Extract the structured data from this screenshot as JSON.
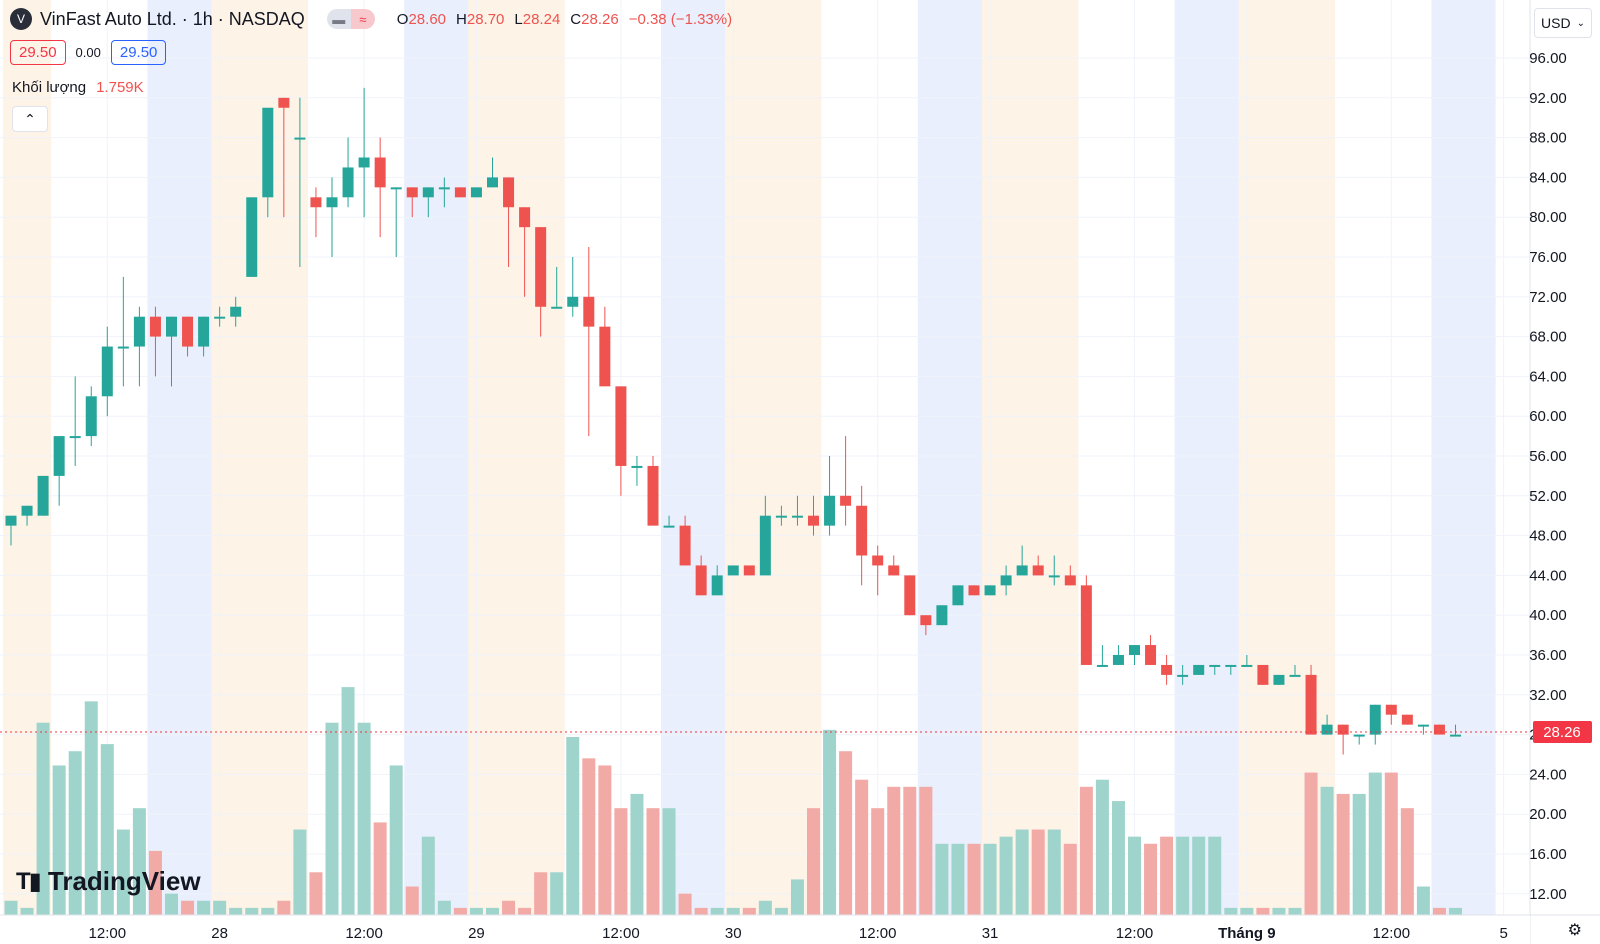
{
  "header": {
    "symbol_icon": "V",
    "title": "VinFast Auto Ltd. · 1h · NASDAQ",
    "toggle_left_icon": "dash-icon",
    "toggle_right_icon": "approx-icon",
    "ohlc": {
      "o_label": "O",
      "o": "28.60",
      "h_label": "H",
      "h": "28.70",
      "l_label": "L",
      "l": "28.24",
      "c_label": "C",
      "c": "28.26",
      "change": "−0.38 (−1.33%)"
    },
    "sell_price": "29.50",
    "spread": "0.00",
    "buy_price": "29.50",
    "volume_label": "Khối lượng",
    "volume_value": "1.759K",
    "collapse_icon": "chevron-up-icon",
    "currency": "USD",
    "logo_text": "TradingView"
  },
  "colors": {
    "up": "#26a69a",
    "down": "#ef5350",
    "up_volume": "#9fd4cd",
    "down_volume": "#f2aaa7",
    "session_pre": "#fdf3e6",
    "session_post": "#e9effc",
    "price_tag": "#f23645"
  },
  "chart_data": {
    "type": "candlestick",
    "timeframe": "1h",
    "ylim": [
      10,
      98
    ],
    "y_ticks": [
      "96.00",
      "92.00",
      "88.00",
      "84.00",
      "80.00",
      "76.00",
      "72.00",
      "68.00",
      "64.00",
      "60.00",
      "56.00",
      "52.00",
      "48.00",
      "44.00",
      "40.00",
      "36.00",
      "32.00",
      "28.00",
      "24.00",
      "20.00",
      "16.00",
      "12.00"
    ],
    "x_ticks": [
      {
        "bar": 6,
        "label": "12:00"
      },
      {
        "bar": 13,
        "label": "28"
      },
      {
        "bar": 22,
        "label": "12:00"
      },
      {
        "bar": 29,
        "label": "29"
      },
      {
        "bar": 38,
        "label": "12:00"
      },
      {
        "bar": 45,
        "label": "30"
      },
      {
        "bar": 54,
        "label": "12:00"
      },
      {
        "bar": 61,
        "label": "31"
      },
      {
        "bar": 70,
        "label": "12:00"
      },
      {
        "bar": 77,
        "label": "Tháng 9"
      },
      {
        "bar": 86,
        "label": "12:00"
      },
      {
        "bar": 93,
        "label": "5"
      }
    ],
    "last_price": "28.26",
    "last_price_value": 28.26,
    "sessions": [
      {
        "start": 0,
        "end": 2,
        "type": "pre"
      },
      {
        "start": 9,
        "end": 12,
        "type": "post"
      },
      {
        "start": 13,
        "end": 18,
        "type": "pre"
      },
      {
        "start": 25,
        "end": 28,
        "type": "post"
      },
      {
        "start": 29,
        "end": 34,
        "type": "pre"
      },
      {
        "start": 41,
        "end": 44,
        "type": "post"
      },
      {
        "start": 45,
        "end": 50,
        "type": "pre"
      },
      {
        "start": 57,
        "end": 60,
        "type": "post"
      },
      {
        "start": 61,
        "end": 66,
        "type": "pre"
      },
      {
        "start": 73,
        "end": 76,
        "type": "post"
      },
      {
        "start": 77,
        "end": 82,
        "type": "pre"
      },
      {
        "start": 89,
        "end": 92,
        "type": "post"
      }
    ],
    "bars": [
      [
        49,
        50,
        47,
        50,
        2
      ],
      [
        50,
        51,
        49,
        51,
        1
      ],
      [
        50,
        54,
        50,
        54,
        27
      ],
      [
        54,
        58,
        51,
        58,
        21
      ],
      [
        58,
        64,
        55,
        58,
        23
      ],
      [
        58,
        63,
        57,
        62,
        30
      ],
      [
        62,
        69,
        60,
        67,
        24
      ],
      [
        67,
        74,
        63,
        67,
        12
      ],
      [
        67,
        71,
        63,
        70,
        15
      ],
      [
        70,
        71,
        64,
        68,
        9
      ],
      [
        68,
        70,
        63,
        70,
        3
      ],
      [
        70,
        70,
        66,
        67,
        2
      ],
      [
        67,
        70,
        66,
        70,
        2
      ],
      [
        70,
        71,
        69,
        70,
        2
      ],
      [
        70,
        72,
        69,
        71,
        1
      ],
      [
        74,
        82,
        74,
        82,
        1
      ],
      [
        82,
        90,
        80,
        91,
        1
      ],
      [
        92,
        92,
        80,
        91,
        2
      ],
      [
        88,
        92,
        75,
        88,
        12
      ],
      [
        82,
        83,
        78,
        81,
        6
      ],
      [
        81,
        84,
        76,
        82,
        27
      ],
      [
        82,
        88,
        81,
        85,
        32
      ],
      [
        85,
        93,
        80,
        86,
        27
      ],
      [
        86,
        88,
        78,
        83,
        13
      ],
      [
        83,
        83,
        76,
        83,
        21
      ],
      [
        83,
        83,
        80,
        82,
        4
      ],
      [
        82,
        83,
        80,
        83,
        11
      ],
      [
        83,
        84,
        81,
        83,
        2
      ],
      [
        83,
        83,
        82,
        82,
        1
      ],
      [
        82,
        83,
        82,
        83,
        1
      ],
      [
        83,
        86,
        83,
        84,
        1
      ],
      [
        84,
        84,
        75,
        81,
        2
      ],
      [
        81,
        81,
        72,
        79,
        1
      ],
      [
        79,
        79,
        68,
        71,
        6
      ],
      [
        71,
        75,
        71,
        71,
        6
      ],
      [
        71,
        76,
        70,
        72,
        25
      ],
      [
        72,
        77,
        58,
        69,
        22
      ],
      [
        69,
        71,
        64,
        63,
        21
      ],
      [
        63,
        63,
        52,
        55,
        15
      ],
      [
        55,
        56,
        53,
        55,
        17
      ],
      [
        55,
        56,
        50,
        49,
        15
      ],
      [
        49,
        50,
        49,
        49,
        15
      ],
      [
        49,
        50,
        45,
        45,
        3
      ],
      [
        45,
        46,
        42,
        42,
        1
      ],
      [
        42,
        45,
        42,
        44,
        1
      ],
      [
        44,
        45,
        44,
        45,
        1
      ],
      [
        45,
        45,
        44,
        44,
        1
      ],
      [
        44,
        52,
        45,
        50,
        2
      ],
      [
        50,
        51,
        49,
        50,
        1
      ],
      [
        50,
        52,
        49,
        50,
        5
      ],
      [
        50,
        52,
        48,
        49,
        15
      ],
      [
        49,
        56,
        48,
        52,
        26
      ],
      [
        52,
        58,
        49,
        51,
        23
      ],
      [
        51,
        53,
        43,
        46,
        19
      ],
      [
        46,
        47,
        42,
        45,
        15
      ],
      [
        45,
        46,
        44,
        44,
        18
      ],
      [
        44,
        44,
        40,
        40,
        18
      ],
      [
        40,
        40,
        38,
        39,
        18
      ],
      [
        39,
        41,
        39,
        41,
        10
      ],
      [
        41,
        43,
        41,
        43,
        10
      ],
      [
        43,
        43,
        42,
        42,
        10
      ],
      [
        42,
        43,
        42,
        43,
        10
      ],
      [
        43,
        45,
        42,
        44,
        11
      ],
      [
        44,
        47,
        44,
        45,
        12
      ],
      [
        45,
        46,
        44,
        44,
        12
      ],
      [
        44,
        46,
        43,
        44,
        12
      ],
      [
        44,
        45,
        43,
        43,
        10
      ],
      [
        43,
        44,
        36,
        35,
        18
      ],
      [
        35,
        37,
        35,
        35,
        19
      ],
      [
        35,
        37,
        35,
        36,
        16
      ],
      [
        36,
        37,
        35,
        37,
        11
      ],
      [
        37,
        38,
        35,
        35,
        10
      ],
      [
        35,
        36,
        33,
        34,
        11
      ],
      [
        34,
        35,
        33,
        34,
        11
      ],
      [
        34,
        35,
        34,
        35,
        11
      ],
      [
        35,
        35,
        34,
        35,
        11
      ],
      [
        35,
        35,
        34,
        35,
        1
      ],
      [
        35,
        36,
        35,
        35,
        1
      ],
      [
        35,
        35,
        33,
        33,
        1
      ],
      [
        33,
        34,
        33,
        34,
        1
      ],
      [
        34,
        35,
        34,
        34,
        1
      ],
      [
        34,
        35,
        30,
        28,
        20
      ],
      [
        28,
        30,
        28,
        29,
        18
      ],
      [
        29,
        29,
        26,
        28,
        17
      ],
      [
        28,
        28,
        27,
        28,
        17
      ],
      [
        28,
        31,
        27,
        31,
        20
      ],
      [
        31,
        31,
        29,
        30,
        20
      ],
      [
        30,
        30,
        29,
        29,
        15
      ],
      [
        29,
        29,
        28,
        29,
        4
      ],
      [
        29,
        29,
        28,
        28,
        1
      ],
      [
        28,
        29,
        28,
        28,
        1
      ]
    ],
    "volume_max": 33
  }
}
